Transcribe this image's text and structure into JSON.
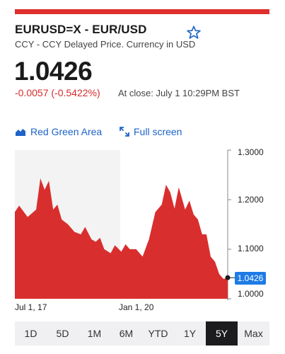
{
  "header": {
    "title": "EURUSD=X - EUR/USD",
    "subtitle": "CCY - CCY Delayed Price. Currency in USD"
  },
  "quote": {
    "price": "1.0426",
    "change": "-0.0057 (-0.5422%)",
    "close_time": "At close: July 1 10:29PM BST"
  },
  "chart_controls": {
    "chart_type_label": "Red Green Area",
    "fullscreen_label": "Full screen"
  },
  "chart_data": {
    "type": "area",
    "x_tick_labels": [
      "Jul 1, 17",
      "Jan 1, 20"
    ],
    "y_tick_labels": [
      "1.3000",
      "1.2000",
      "1.1000",
      "1.0000"
    ],
    "ylim": [
      1.0,
      1.3
    ],
    "last_value_label": "1.0426",
    "series_color": "#d92e2e",
    "shaded_region_color": "#f3f3f3",
    "x": [
      0,
      0.02,
      0.06,
      0.1,
      0.12,
      0.14,
      0.16,
      0.18,
      0.2,
      0.22,
      0.25,
      0.28,
      0.31,
      0.33,
      0.36,
      0.38,
      0.4,
      0.42,
      0.45,
      0.47,
      0.5,
      0.52,
      0.54,
      0.57,
      0.6,
      0.63,
      0.66,
      0.69,
      0.71,
      0.73,
      0.75,
      0.77,
      0.8,
      0.82,
      0.84,
      0.86,
      0.88,
      0.9,
      0.92,
      0.94,
      0.96,
      0.98,
      1.0
    ],
    "values": [
      1.175,
      1.188,
      1.165,
      1.18,
      1.243,
      1.22,
      1.238,
      1.18,
      1.19,
      1.16,
      1.15,
      1.135,
      1.13,
      1.145,
      1.12,
      1.115,
      1.123,
      1.1,
      1.092,
      1.108,
      1.095,
      1.11,
      1.1,
      1.1,
      1.085,
      1.12,
      1.175,
      1.19,
      1.23,
      1.215,
      1.182,
      1.225,
      1.18,
      1.198,
      1.17,
      1.16,
      1.13,
      1.13,
      1.085,
      1.075,
      1.05,
      1.04,
      1.0426
    ]
  },
  "range_buttons": [
    "1D",
    "5D",
    "1M",
    "6M",
    "YTD",
    "1Y",
    "5Y",
    "Max"
  ],
  "active_range": "5Y",
  "colors": {
    "accent": "#1e63c8",
    "negative": "#d62b2b",
    "brand_bar": "#e02f2f"
  }
}
